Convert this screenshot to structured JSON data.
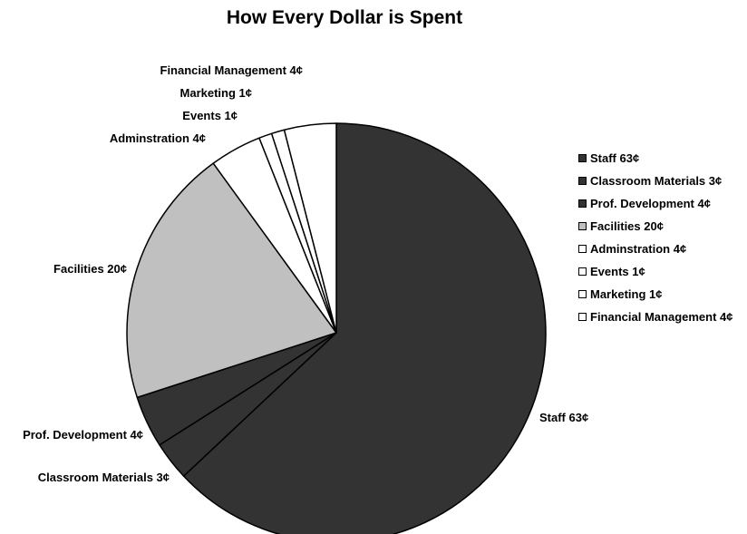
{
  "chart_data": {
    "type": "pie",
    "title": "How Every Dollar is Spent",
    "slices": [
      {
        "label": "Staff 63¢",
        "value": 63,
        "color": "#333333"
      },
      {
        "label": "Classroom Materials 3¢",
        "value": 3,
        "color": "#333333"
      },
      {
        "label": "Prof. Development 4¢",
        "value": 4,
        "color": "#333333"
      },
      {
        "label": "Facilities 20¢",
        "value": 20,
        "color": "#c0c0c0"
      },
      {
        "label": "Adminstration 4¢",
        "value": 4,
        "color": "#ffffff"
      },
      {
        "label": "Events 1¢",
        "value": 1,
        "color": "#ffffff"
      },
      {
        "label": "Marketing 1¢",
        "value": 1,
        "color": "#ffffff"
      },
      {
        "label": "Financial Management 4¢",
        "value": 4,
        "color": "#ffffff"
      }
    ],
    "legend_position": "right"
  }
}
